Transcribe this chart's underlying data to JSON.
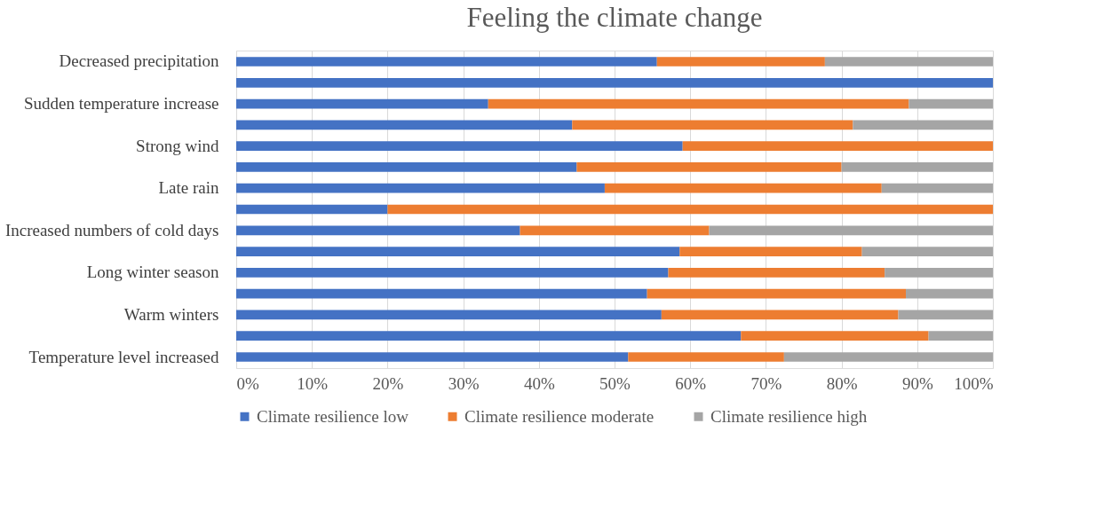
{
  "chart_data": {
    "type": "bar",
    "orientation": "horizontal",
    "stacked": true,
    "title": "Feeling the climate change",
    "categories": [
      "Decreased precipitation",
      null,
      "Sudden temperature increase",
      null,
      "Strong wind",
      null,
      "Late rain",
      null,
      "Increased numbers of cold days",
      null,
      "Long winter season",
      null,
      "Warm winters",
      null,
      "Temperature level increased"
    ],
    "series": [
      {
        "name": "Climate resilience low",
        "color": "#4472c4",
        "values": [
          55.6,
          100,
          33.3,
          44.4,
          59.0,
          45.0,
          48.7,
          20.0,
          37.5,
          58.6,
          57.1,
          54.3,
          56.2,
          66.7,
          51.8
        ]
      },
      {
        "name": "Climate resilience moderate",
        "color": "#ed7d31",
        "values": [
          22.2,
          0,
          55.6,
          37.1,
          41.0,
          35.0,
          36.6,
          80.0,
          25.0,
          24.1,
          28.6,
          34.2,
          31.3,
          24.8,
          20.6
        ]
      },
      {
        "name": "Climate resilience high",
        "color": "#a5a5a5",
        "values": [
          22.2,
          0,
          11.1,
          18.5,
          0,
          20.0,
          14.7,
          0,
          37.5,
          17.3,
          14.3,
          11.5,
          12.5,
          8.5,
          27.6
        ]
      }
    ],
    "xlim": [
      0,
      100
    ],
    "xticks": [
      {
        "value": 0,
        "label": "0%"
      },
      {
        "value": 10,
        "label": "10%"
      },
      {
        "value": 20,
        "label": "20%"
      },
      {
        "value": 30,
        "label": "30%"
      },
      {
        "value": 40,
        "label": "40%"
      },
      {
        "value": 50,
        "label": "50%"
      },
      {
        "value": 60,
        "label": "60%"
      },
      {
        "value": 70,
        "label": "70%"
      },
      {
        "value": 80,
        "label": "80%"
      },
      {
        "value": 90,
        "label": "90%"
      },
      {
        "value": 100,
        "label": "100%"
      }
    ],
    "grid": "x",
    "legend": "bottom"
  }
}
